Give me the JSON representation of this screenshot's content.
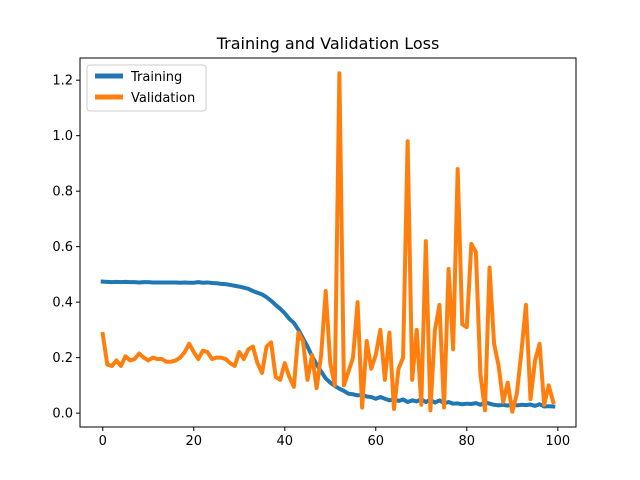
{
  "chart_data": {
    "type": "line",
    "title": "Training and Validation Loss",
    "xlabel": "",
    "ylabel": "",
    "xlim": [
      -5,
      104
    ],
    "ylim": [
      -0.05,
      1.28
    ],
    "xticks": [
      0,
      20,
      40,
      60,
      80,
      100
    ],
    "yticks": [
      0.0,
      0.2,
      0.4,
      0.6,
      0.8,
      1.0,
      1.2
    ],
    "xtick_labels": [
      "0",
      "20",
      "40",
      "60",
      "80",
      "100"
    ],
    "ytick_labels": [
      "0.0",
      "0.2",
      "0.4",
      "0.6",
      "0.8",
      "1.0",
      "1.2"
    ],
    "legend_position": "top-left",
    "series": [
      {
        "name": "Training",
        "color": "#1f77b4",
        "x": [
          0,
          1,
          2,
          3,
          4,
          5,
          6,
          7,
          8,
          9,
          10,
          11,
          12,
          13,
          14,
          15,
          16,
          17,
          18,
          19,
          20,
          21,
          22,
          23,
          24,
          25,
          26,
          27,
          28,
          29,
          30,
          31,
          32,
          33,
          34,
          35,
          36,
          37,
          38,
          39,
          40,
          41,
          42,
          43,
          44,
          45,
          46,
          47,
          48,
          49,
          50,
          51,
          52,
          53,
          54,
          55,
          56,
          57,
          58,
          59,
          60,
          61,
          62,
          63,
          64,
          65,
          66,
          67,
          68,
          69,
          70,
          71,
          72,
          73,
          74,
          75,
          76,
          77,
          78,
          79,
          80,
          81,
          82,
          83,
          84,
          85,
          86,
          87,
          88,
          89,
          90,
          91,
          92,
          93,
          94,
          95,
          96,
          97,
          98,
          99
        ],
        "values": [
          0.474,
          0.473,
          0.472,
          0.473,
          0.472,
          0.473,
          0.472,
          0.472,
          0.471,
          0.472,
          0.472,
          0.471,
          0.471,
          0.471,
          0.471,
          0.471,
          0.471,
          0.47,
          0.471,
          0.47,
          0.47,
          0.472,
          0.47,
          0.471,
          0.469,
          0.468,
          0.466,
          0.465,
          0.462,
          0.459,
          0.456,
          0.452,
          0.448,
          0.44,
          0.434,
          0.428,
          0.418,
          0.405,
          0.39,
          0.376,
          0.36,
          0.34,
          0.325,
          0.3,
          0.27,
          0.24,
          0.205,
          0.175,
          0.15,
          0.125,
          0.11,
          0.098,
          0.088,
          0.08,
          0.07,
          0.068,
          0.064,
          0.066,
          0.06,
          0.058,
          0.052,
          0.058,
          0.052,
          0.046,
          0.05,
          0.044,
          0.049,
          0.04,
          0.046,
          0.042,
          0.05,
          0.04,
          0.048,
          0.038,
          0.046,
          0.036,
          0.04,
          0.034,
          0.035,
          0.032,
          0.034,
          0.033,
          0.036,
          0.03,
          0.04,
          0.034,
          0.03,
          0.028,
          0.03,
          0.027,
          0.032,
          0.028,
          0.03,
          0.029,
          0.031,
          0.026,
          0.032,
          0.024,
          0.025,
          0.024
        ]
      },
      {
        "name": "Validation",
        "color": "#ff7f0e",
        "x": [
          0,
          1,
          2,
          3,
          4,
          5,
          6,
          7,
          8,
          9,
          10,
          11,
          12,
          13,
          14,
          15,
          16,
          17,
          18,
          19,
          20,
          21,
          22,
          23,
          24,
          25,
          26,
          27,
          28,
          29,
          30,
          31,
          32,
          33,
          34,
          35,
          36,
          37,
          38,
          39,
          40,
          41,
          42,
          43,
          44,
          45,
          46,
          47,
          48,
          49,
          50,
          51,
          52,
          53,
          54,
          55,
          56,
          57,
          58,
          59,
          60,
          61,
          62,
          63,
          64,
          65,
          66,
          67,
          68,
          69,
          70,
          71,
          72,
          73,
          74,
          75,
          76,
          77,
          78,
          79,
          80,
          81,
          82,
          83,
          84,
          85,
          86,
          87,
          88,
          89,
          90,
          91,
          92,
          93,
          94,
          95,
          96,
          97,
          98,
          99
        ],
        "values": [
          0.285,
          0.175,
          0.17,
          0.19,
          0.17,
          0.205,
          0.19,
          0.195,
          0.215,
          0.2,
          0.19,
          0.2,
          0.195,
          0.195,
          0.185,
          0.185,
          0.19,
          0.2,
          0.22,
          0.25,
          0.22,
          0.195,
          0.225,
          0.22,
          0.195,
          0.2,
          0.2,
          0.195,
          0.18,
          0.17,
          0.22,
          0.195,
          0.23,
          0.24,
          0.18,
          0.145,
          0.24,
          0.255,
          0.13,
          0.12,
          0.18,
          0.13,
          0.095,
          0.29,
          0.26,
          0.12,
          0.21,
          0.09,
          0.21,
          0.44,
          0.18,
          0.1,
          1.225,
          0.1,
          0.15,
          0.2,
          0.4,
          0.02,
          0.26,
          0.16,
          0.21,
          0.3,
          0.12,
          0.29,
          0.015,
          0.16,
          0.2,
          0.98,
          0.12,
          0.3,
          0.03,
          0.62,
          0.01,
          0.3,
          0.39,
          0.02,
          0.52,
          0.23,
          0.88,
          0.32,
          0.31,
          0.61,
          0.58,
          0.14,
          0.01,
          0.525,
          0.25,
          0.17,
          0.04,
          0.11,
          0.005,
          0.07,
          0.22,
          0.39,
          0.05,
          0.19,
          0.25,
          0.03,
          0.1,
          0.04
        ]
      }
    ]
  }
}
